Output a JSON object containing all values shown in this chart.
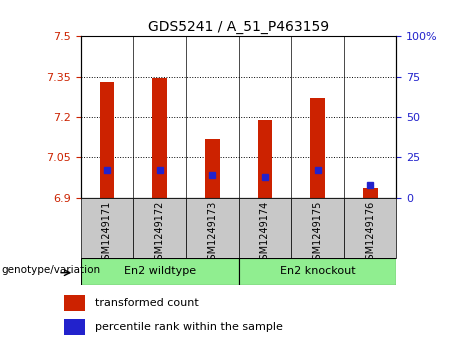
{
  "title": "GDS5241 / A_51_P463159",
  "samples": [
    "GSM1249171",
    "GSM1249172",
    "GSM1249173",
    "GSM1249174",
    "GSM1249175",
    "GSM1249176"
  ],
  "bar_values": [
    7.33,
    7.345,
    7.12,
    7.19,
    7.27,
    6.935
  ],
  "bar_base": 6.9,
  "percentile_values": [
    17,
    17,
    14,
    13,
    17,
    8
  ],
  "ylim_left": [
    6.9,
    7.5
  ],
  "ylim_right": [
    0,
    100
  ],
  "yticks_left": [
    6.9,
    7.05,
    7.2,
    7.35,
    7.5
  ],
  "yticks_right": [
    0,
    25,
    50,
    75,
    100
  ],
  "bar_color": "#CC2200",
  "blue_color": "#2222CC",
  "bg_color": "#C8C8C8",
  "label_color_left": "#CC2200",
  "label_color_right": "#2222CC",
  "group1_label": "En2 wildtype",
  "group2_label": "En2 knockout",
  "group_color": "#90EE90",
  "genotype_label": "genotype/variation",
  "legend_red": "transformed count",
  "legend_blue": "percentile rank within the sample"
}
